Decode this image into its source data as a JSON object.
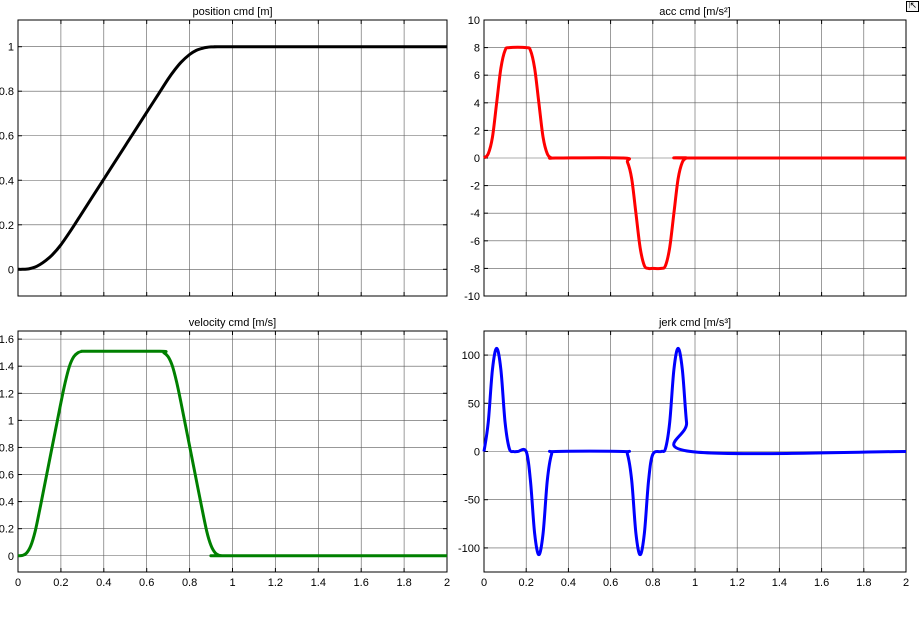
{
  "window": {
    "dock_icon": "dock-arrow-icon"
  },
  "chart_data": [
    {
      "id": "position",
      "type": "line",
      "title": "position cmd [m]",
      "color": "#000000",
      "xlim": [
        0,
        2
      ],
      "ylim": [
        -0.12,
        1.12
      ],
      "yticks": [
        0,
        0.2,
        0.4,
        0.6,
        0.8,
        1
      ],
      "ytick_labels": [
        "0",
        "0.2",
        "0.4",
        "0.6",
        "0.8",
        "1"
      ],
      "xticks": [
        0,
        0.2,
        0.4,
        0.6,
        0.8,
        1,
        1.2,
        1.4,
        1.6,
        1.8,
        2
      ],
      "xtick_labels": [],
      "grid": true,
      "x": [
        0,
        0.02,
        0.05,
        0.08,
        0.1,
        0.13,
        0.16,
        0.2,
        0.25,
        0.3,
        0.35,
        0.4,
        0.45,
        0.5,
        0.55,
        0.6,
        0.65,
        0.7,
        0.73,
        0.76,
        0.8,
        0.83,
        0.86,
        0.88,
        0.9,
        0.93,
        0.96,
        1.0,
        2.0
      ],
      "y": [
        0,
        0.0,
        0.002,
        0.01,
        0.02,
        0.04,
        0.065,
        0.11,
        0.18,
        0.255,
        0.33,
        0.405,
        0.48,
        0.555,
        0.63,
        0.705,
        0.78,
        0.855,
        0.895,
        0.93,
        0.965,
        0.983,
        0.993,
        0.997,
        0.999,
        1.0,
        1.0,
        1.0,
        1.0
      ]
    },
    {
      "id": "acc",
      "type": "line",
      "title": "acc cmd [m/s²]",
      "color": "#ff0000",
      "xlim": [
        0,
        2
      ],
      "ylim": [
        -10,
        10
      ],
      "yticks": [
        -10,
        -8,
        -6,
        -4,
        -2,
        0,
        2,
        4,
        6,
        8,
        10
      ],
      "ytick_labels": [
        "-10",
        "-8",
        "-6",
        "-4",
        "-2",
        "0",
        "2",
        "4",
        "6",
        "8",
        "10"
      ],
      "xticks": [
        0,
        0.2,
        0.4,
        0.6,
        0.8,
        1,
        1.2,
        1.4,
        1.6,
        1.8,
        2
      ],
      "xtick_labels": [],
      "grid": true,
      "x": [
        0,
        0.02,
        0.04,
        0.06,
        0.08,
        0.1,
        0.12,
        0.2,
        0.22,
        0.24,
        0.26,
        0.28,
        0.3,
        0.32,
        0.34,
        0.66,
        0.68,
        0.7,
        0.72,
        0.74,
        0.76,
        0.78,
        0.8,
        0.84,
        0.86,
        0.88,
        0.9,
        0.92,
        0.94,
        0.96,
        0.98,
        2.0
      ],
      "y": [
        0,
        0.3,
        1.5,
        4.0,
        6.5,
        7.8,
        8.0,
        8.0,
        7.8,
        6.5,
        4.0,
        1.5,
        0.3,
        0,
        0,
        0,
        -0.3,
        -1.5,
        -4.0,
        -6.5,
        -7.8,
        -8.0,
        -8.0,
        -8.0,
        -7.8,
        -6.5,
        -4.0,
        -1.5,
        -0.3,
        0,
        0,
        0
      ]
    },
    {
      "id": "velocity",
      "type": "line",
      "title": "velocity cmd [m/s]",
      "color": "#008000",
      "xlim": [
        0,
        2
      ],
      "ylim": [
        -0.12,
        1.66
      ],
      "yticks": [
        0,
        0.2,
        0.4,
        0.6,
        0.8,
        1,
        1.2,
        1.4,
        1.6
      ],
      "ytick_labels": [
        "0",
        "0.2",
        "0.4",
        "0.6",
        "0.8",
        "1",
        "1.2",
        "1.4",
        "1.6"
      ],
      "xticks": [
        0,
        0.2,
        0.4,
        0.6,
        0.8,
        1,
        1.2,
        1.4,
        1.6,
        1.8,
        2
      ],
      "xtick_labels": [
        "0",
        "0.2",
        "0.4",
        "0.6",
        "0.8",
        "1",
        "1.2",
        "1.4",
        "1.6",
        "1.8",
        "2"
      ],
      "grid": true,
      "x": [
        0,
        0.02,
        0.04,
        0.06,
        0.08,
        0.1,
        0.12,
        0.15,
        0.18,
        0.2,
        0.22,
        0.24,
        0.26,
        0.28,
        0.3,
        0.33,
        0.66,
        0.68,
        0.7,
        0.72,
        0.74,
        0.76,
        0.78,
        0.8,
        0.82,
        0.85,
        0.88,
        0.9,
        0.92,
        0.94,
        0.96,
        0.98,
        2.0
      ],
      "y": [
        0,
        0.002,
        0.02,
        0.075,
        0.18,
        0.33,
        0.49,
        0.73,
        0.97,
        1.13,
        1.28,
        1.4,
        1.47,
        1.5,
        1.51,
        1.51,
        1.51,
        1.5,
        1.47,
        1.4,
        1.28,
        1.13,
        0.97,
        0.81,
        0.65,
        0.41,
        0.18,
        0.075,
        0.02,
        0.002,
        0,
        0,
        0
      ]
    },
    {
      "id": "jerk",
      "type": "line",
      "title": "jerk cmd [m/s³]",
      "color": "#0000ff",
      "xlim": [
        0,
        2
      ],
      "ylim": [
        -125,
        125
      ],
      "yticks": [
        -100,
        -50,
        0,
        50,
        100
      ],
      "ytick_labels": [
        "-100",
        "-50",
        "0",
        "50",
        "100"
      ],
      "xticks": [
        0,
        0.2,
        0.4,
        0.6,
        0.8,
        1,
        1.2,
        1.4,
        1.6,
        1.8,
        2
      ],
      "xtick_labels": [
        "0",
        "0.2",
        "0.4",
        "0.6",
        "0.8",
        "1",
        "1.2",
        "1.4",
        "1.6",
        "1.8",
        "2"
      ],
      "grid": true,
      "x": [
        0,
        0.02,
        0.04,
        0.06,
        0.08,
        0.1,
        0.12,
        0.14,
        0.16,
        0.2,
        0.22,
        0.24,
        0.26,
        0.28,
        0.3,
        0.32,
        0.34,
        0.66,
        0.68,
        0.7,
        0.72,
        0.74,
        0.76,
        0.78,
        0.8,
        0.84,
        0.86,
        0.88,
        0.9,
        0.92,
        0.94,
        0.96,
        0.98,
        2.0
      ],
      "y": [
        0,
        30,
        85,
        107,
        85,
        30,
        3,
        0,
        0,
        0,
        -30,
        -85,
        -107,
        -85,
        -30,
        -3,
        0,
        0,
        -3,
        -30,
        -85,
        -107,
        -85,
        -30,
        -3,
        0,
        3,
        30,
        85,
        107,
        85,
        30,
        0,
        0
      ]
    }
  ]
}
